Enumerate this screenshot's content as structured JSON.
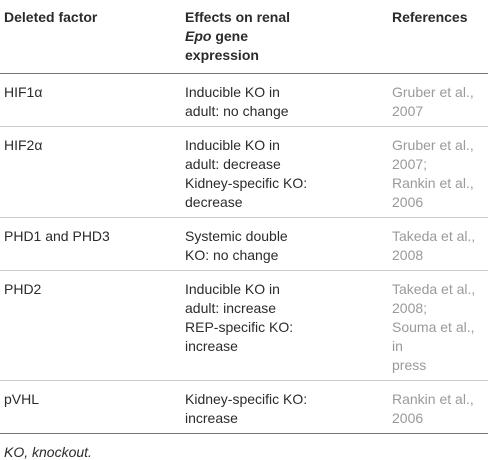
{
  "table": {
    "headers": {
      "factor": "Deleted factor",
      "effects_line1": "Effects on renal",
      "effects_epo": "Epo",
      "effects_line2_rest": " gene",
      "effects_line3": "expression",
      "references": "References"
    },
    "rows": [
      {
        "factor": "HIF1α",
        "effects": [
          "Inducible KO in",
          "adult: no change"
        ],
        "refs": [
          "Gruber et al.,",
          "2007"
        ]
      },
      {
        "factor": "HIF2α",
        "effects": [
          "Inducible KO in",
          "adult: decrease",
          "Kidney-specific KO:",
          "decrease"
        ],
        "refs": [
          "Gruber et al.,",
          "2007;",
          "Rankin et al.,",
          "2006"
        ]
      },
      {
        "factor": "PHD1 and PHD3",
        "effects": [
          "Systemic double",
          "KO: no change"
        ],
        "refs": [
          "Takeda et al.,",
          "2008"
        ]
      },
      {
        "factor": "PHD2",
        "effects": [
          "Inducible KO in",
          "adult: increase",
          "REP-specific KO:",
          "increase"
        ],
        "refs": [
          "Takeda et al.,",
          "2008;",
          "Souma et al., in",
          "press"
        ]
      },
      {
        "factor": "pVHL",
        "effects": [
          "Kidney-specific KO:",
          "increase"
        ],
        "refs": [
          "Rankin et al.,",
          "2006"
        ]
      }
    ]
  },
  "footnote": "KO, knockout."
}
